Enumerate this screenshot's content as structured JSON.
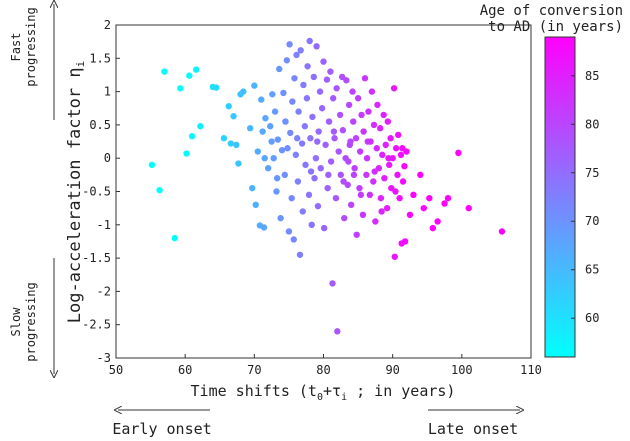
{
  "chart_data": {
    "type": "scatter",
    "title": "",
    "xlabel": "Time shifts (t0+τi ; in years)",
    "xlabel_parts": {
      "a": "Time shifts (t",
      "sub0": "0",
      "b": "+τ",
      "subi": "i",
      "c": " ; in years)"
    },
    "ylabel": "Log-acceleration factor ηi",
    "ylabel_parts": {
      "main": "Log-acceleration factor η",
      "sub": "i"
    },
    "xlim": [
      50,
      110
    ],
    "ylim": [
      -3,
      2
    ],
    "xticks": [
      50,
      60,
      70,
      80,
      90,
      100,
      110
    ],
    "yticks": [
      -3,
      -2.5,
      -2,
      -1.5,
      -1,
      -0.5,
      0,
      0.5,
      1,
      1.5,
      2
    ],
    "colorbar": {
      "label_line1": "Age of conversion",
      "label_line2": "to AD (in years)",
      "range": [
        56,
        89
      ],
      "ticks": [
        60,
        65,
        70,
        75,
        80,
        85
      ],
      "color_low": "#00ffff",
      "color_high": "#ff00ff"
    },
    "annotations": {
      "fast_line1": "Fast",
      "fast_line2": "progressing",
      "slow_line1": "Slow",
      "slow_line2": "progressing",
      "early": "Early onset",
      "late": "Late onset"
    },
    "points": [
      {
        "x": 55.2,
        "y": -0.1
      },
      {
        "x": 56.3,
        "y": -0.48
      },
      {
        "x": 57.0,
        "y": 1.3
      },
      {
        "x": 58.5,
        "y": -1.2
      },
      {
        "x": 59.3,
        "y": 1.05
      },
      {
        "x": 60.2,
        "y": 0.07
      },
      {
        "x": 60.6,
        "y": 1.24
      },
      {
        "x": 61.0,
        "y": 0.33
      },
      {
        "x": 61.6,
        "y": 1.33
      },
      {
        "x": 62.2,
        "y": 0.48
      },
      {
        "x": 64.0,
        "y": 1.07
      },
      {
        "x": 64.5,
        "y": 1.06
      },
      {
        "x": 65.6,
        "y": 0.3
      },
      {
        "x": 66.3,
        "y": 0.78
      },
      {
        "x": 66.6,
        "y": 0.22
      },
      {
        "x": 67.0,
        "y": 0.63
      },
      {
        "x": 67.4,
        "y": 0.2
      },
      {
        "x": 67.7,
        "y": -0.08
      },
      {
        "x": 68.0,
        "y": 0.96
      },
      {
        "x": 68.4,
        "y": 1.0
      },
      {
        "x": 69.4,
        "y": 0.45
      },
      {
        "x": 69.7,
        "y": -0.45
      },
      {
        "x": 70.0,
        "y": 1.09
      },
      {
        "x": 70.2,
        "y": -0.7
      },
      {
        "x": 70.5,
        "y": 0.1
      },
      {
        "x": 70.8,
        "y": -1.01
      },
      {
        "x": 71.0,
        "y": 0.88
      },
      {
        "x": 71.2,
        "y": 0.4
      },
      {
        "x": 71.4,
        "y": -1.04
      },
      {
        "x": 71.6,
        "y": 0.6
      },
      {
        "x": 72.0,
        "y": -0.15
      },
      {
        "x": 72.3,
        "y": 0.48
      },
      {
        "x": 72.6,
        "y": 0.96
      },
      {
        "x": 72.8,
        "y": 0.0
      },
      {
        "x": 73.0,
        "y": 0.7
      },
      {
        "x": 73.2,
        "y": -0.5
      },
      {
        "x": 73.4,
        "y": 0.28
      },
      {
        "x": 73.6,
        "y": 1.34
      },
      {
        "x": 73.8,
        "y": -0.9
      },
      {
        "x": 74.0,
        "y": 0.12
      },
      {
        "x": 74.2,
        "y": 0.98
      },
      {
        "x": 74.4,
        "y": -0.25
      },
      {
        "x": 74.5,
        "y": 0.55
      },
      {
        "x": 74.7,
        "y": 1.47
      },
      {
        "x": 75.0,
        "y": -1.1
      },
      {
        "x": 75.1,
        "y": 1.71
      },
      {
        "x": 75.2,
        "y": 0.38
      },
      {
        "x": 75.4,
        "y": -0.6
      },
      {
        "x": 75.5,
        "y": 0.85
      },
      {
        "x": 75.7,
        "y": -1.22
      },
      {
        "x": 75.8,
        "y": 1.2
      },
      {
        "x": 76.0,
        "y": 0.05
      },
      {
        "x": 76.1,
        "y": 1.55
      },
      {
        "x": 76.3,
        "y": -0.35
      },
      {
        "x": 76.4,
        "y": 0.7
      },
      {
        "x": 76.6,
        "y": -1.45
      },
      {
        "x": 76.7,
        "y": 1.62
      },
      {
        "x": 76.9,
        "y": 0.22
      },
      {
        "x": 77.0,
        "y": -0.8
      },
      {
        "x": 77.1,
        "y": 1.1
      },
      {
        "x": 77.3,
        "y": 0.48
      },
      {
        "x": 77.4,
        "y": -0.1
      },
      {
        "x": 77.6,
        "y": 0.9
      },
      {
        "x": 77.7,
        "y": 1.38
      },
      {
        "x": 77.9,
        "y": -0.55
      },
      {
        "x": 78.0,
        "y": 1.76
      },
      {
        "x": 78.1,
        "y": 0.3
      },
      {
        "x": 78.3,
        "y": -1.0
      },
      {
        "x": 78.4,
        "y": 0.62
      },
      {
        "x": 78.6,
        "y": 1.22
      },
      {
        "x": 78.7,
        "y": -0.3
      },
      {
        "x": 78.9,
        "y": 0.0
      },
      {
        "x": 79.0,
        "y": 1.68
      },
      {
        "x": 79.2,
        "y": -0.72
      },
      {
        "x": 79.3,
        "y": 0.4
      },
      {
        "x": 79.5,
        "y": 1.0
      },
      {
        "x": 79.6,
        "y": -0.15
      },
      {
        "x": 79.8,
        "y": 0.75
      },
      {
        "x": 80.0,
        "y": 1.45
      },
      {
        "x": 80.1,
        "y": -1.05
      },
      {
        "x": 80.3,
        "y": 0.2
      },
      {
        "x": 80.5,
        "y": 1.18
      },
      {
        "x": 80.6,
        "y": -0.45
      },
      {
        "x": 80.8,
        "y": 0.55
      },
      {
        "x": 81.0,
        "y": 1.3
      },
      {
        "x": 81.1,
        "y": -0.05
      },
      {
        "x": 81.3,
        "y": -1.88
      },
      {
        "x": 81.4,
        "y": 0.9
      },
      {
        "x": 81.6,
        "y": 0.3
      },
      {
        "x": 81.8,
        "y": -0.6
      },
      {
        "x": 81.9,
        "y": 1.05
      },
      {
        "x": 82.0,
        "y": -2.6
      },
      {
        "x": 82.2,
        "y": 0.1
      },
      {
        "x": 82.4,
        "y": 0.65
      },
      {
        "x": 82.5,
        "y": -0.25
      },
      {
        "x": 82.7,
        "y": 1.22
      },
      {
        "x": 82.8,
        "y": 0.42
      },
      {
        "x": 83.0,
        "y": -0.9
      },
      {
        "x": 83.2,
        "y": 0.0
      },
      {
        "x": 83.3,
        "y": 1.17
      },
      {
        "x": 83.5,
        "y": -0.4
      },
      {
        "x": 83.7,
        "y": 0.8
      },
      {
        "x": 83.8,
        "y": 0.2
      },
      {
        "x": 84.0,
        "y": -0.7
      },
      {
        "x": 84.2,
        "y": 1.0
      },
      {
        "x": 84.3,
        "y": 0.55
      },
      {
        "x": 84.5,
        "y": -0.15
      },
      {
        "x": 84.7,
        "y": 0.3
      },
      {
        "x": 84.8,
        "y": -1.15
      },
      {
        "x": 85.0,
        "y": 0.9
      },
      {
        "x": 85.2,
        "y": -0.45
      },
      {
        "x": 85.3,
        "y": 0.1
      },
      {
        "x": 85.5,
        "y": 0.65
      },
      {
        "x": 85.7,
        "y": -0.85
      },
      {
        "x": 85.8,
        "y": 0.4
      },
      {
        "x": 86.0,
        "y": 1.2
      },
      {
        "x": 86.2,
        "y": -0.25
      },
      {
        "x": 86.3,
        "y": 0.0
      },
      {
        "x": 86.5,
        "y": 0.7
      },
      {
        "x": 86.7,
        "y": -0.55
      },
      {
        "x": 86.8,
        "y": 0.25
      },
      {
        "x": 87.0,
        "y": 1.0
      },
      {
        "x": 87.2,
        "y": -0.35
      },
      {
        "x": 87.3,
        "y": 0.5
      },
      {
        "x": 87.5,
        "y": -0.95
      },
      {
        "x": 87.7,
        "y": 0.15
      },
      {
        "x": 87.8,
        "y": 0.8
      },
      {
        "x": 88.0,
        "y": -0.15
      },
      {
        "x": 88.2,
        "y": 0.45
      },
      {
        "x": 88.3,
        "y": -0.6
      },
      {
        "x": 88.5,
        "y": 0.05
      },
      {
        "x": 88.7,
        "y": 0.65
      },
      {
        "x": 88.8,
        "y": -0.3
      },
      {
        "x": 89.0,
        "y": 0.2
      },
      {
        "x": 89.2,
        "y": -0.75
      },
      {
        "x": 89.3,
        "y": 0.55
      },
      {
        "x": 89.5,
        "y": -0.1
      },
      {
        "x": 89.7,
        "y": 0.3
      },
      {
        "x": 89.8,
        "y": -0.45
      },
      {
        "x": 90.0,
        "y": 0.0
      },
      {
        "x": 90.2,
        "y": 1.05
      },
      {
        "x": 90.3,
        "y": -1.48
      },
      {
        "x": 90.5,
        "y": 0.15
      },
      {
        "x": 90.7,
        "y": -0.25
      },
      {
        "x": 90.8,
        "y": 0.35
      },
      {
        "x": 91.0,
        "y": -0.6
      },
      {
        "x": 91.2,
        "y": 0.05
      },
      {
        "x": 91.3,
        "y": -1.28
      },
      {
        "x": 91.5,
        "y": -0.35
      },
      {
        "x": 91.7,
        "y": -0.12
      },
      {
        "x": 91.8,
        "y": -1.25
      },
      {
        "x": 92.0,
        "y": 0.1
      },
      {
        "x": 92.5,
        "y": -0.85
      },
      {
        "x": 93.0,
        "y": -0.55
      },
      {
        "x": 94.0,
        "y": -0.25
      },
      {
        "x": 94.5,
        "y": -0.75
      },
      {
        "x": 95.3,
        "y": -0.6
      },
      {
        "x": 95.8,
        "y": -1.05
      },
      {
        "x": 96.5,
        "y": -0.95
      },
      {
        "x": 97.5,
        "y": -0.68
      },
      {
        "x": 98.0,
        "y": -0.6
      },
      {
        "x": 99.5,
        "y": 0.08
      },
      {
        "x": 101.0,
        "y": -0.75
      },
      {
        "x": 105.8,
        "y": -1.1
      },
      {
        "x": 71.5,
        "y": 0.0
      },
      {
        "x": 72.5,
        "y": 0.25
      },
      {
        "x": 73.3,
        "y": -0.3
      },
      {
        "x": 74.8,
        "y": 0.15
      },
      {
        "x": 76.2,
        "y": 0.3
      },
      {
        "x": 78.2,
        "y": -0.2
      },
      {
        "x": 79.1,
        "y": 0.25
      },
      {
        "x": 80.7,
        "y": -0.25
      },
      {
        "x": 81.5,
        "y": 0.4
      },
      {
        "x": 82.9,
        "y": -0.35
      },
      {
        "x": 83.9,
        "y": 0.25
      },
      {
        "x": 85.4,
        "y": -0.55
      },
      {
        "x": 86.4,
        "y": 0.25
      },
      {
        "x": 87.4,
        "y": -0.2
      },
      {
        "x": 88.4,
        "y": -0.8
      },
      {
        "x": 89.4,
        "y": 0.0
      },
      {
        "x": 90.4,
        "y": -0.5
      },
      {
        "x": 91.4,
        "y": 0.15
      },
      {
        "x": 84.4,
        "y": -0.25
      },
      {
        "x": 83.6,
        "y": -0.05
      }
    ]
  }
}
